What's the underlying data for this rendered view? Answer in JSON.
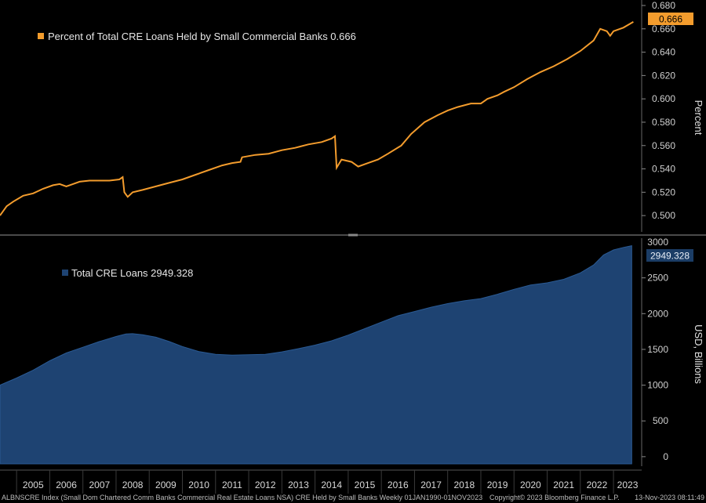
{
  "chart_data": [
    {
      "type": "line",
      "title": "Percent of Total CRE Loans Held by Small Commercial Banks 0.666",
      "legend": "Percent of Total CRE Loans Held by Small Commercial Banks",
      "last_value_label": "0.666",
      "ylabel": "Percent",
      "ylim": [
        0.486,
        0.68
      ],
      "yticks": [
        "0.500",
        "0.520",
        "0.540",
        "0.560",
        "0.580",
        "0.600",
        "0.620",
        "0.640",
        "0.660",
        "0.680"
      ],
      "color": "#f39c2d",
      "series": [
        {
          "name": "Percent of Total CRE Loans Held by Small Commercial Banks",
          "x": [
            2004.5,
            2004.7,
            2004.9,
            2005.2,
            2005.5,
            2005.8,
            2006.1,
            2006.3,
            2006.5,
            2006.7,
            2006.9,
            2007.2,
            2007.5,
            2007.8,
            2008.1,
            2008.2,
            2008.25,
            2008.35,
            2008.5,
            2008.8,
            2009.2,
            2009.6,
            2010.0,
            2010.4,
            2010.8,
            2011.2,
            2011.5,
            2011.75,
            2011.8,
            2012.2,
            2012.6,
            2013.0,
            2013.4,
            2013.8,
            2014.2,
            2014.5,
            2014.6,
            2014.65,
            2014.8,
            2015.1,
            2015.3,
            2015.6,
            2015.9,
            2016.2,
            2016.6,
            2016.9,
            2017.3,
            2017.7,
            2018.0,
            2018.3,
            2018.7,
            2019.0,
            2019.2,
            2019.5,
            2019.7,
            2020.0,
            2020.4,
            2020.8,
            2021.2,
            2021.6,
            2022.0,
            2022.4,
            2022.6,
            2022.8,
            2022.9,
            2023.0,
            2023.3,
            2023.6
          ],
          "values": [
            0.5,
            0.508,
            0.512,
            0.517,
            0.519,
            0.523,
            0.526,
            0.527,
            0.525,
            0.527,
            0.529,
            0.53,
            0.53,
            0.53,
            0.531,
            0.533,
            0.52,
            0.516,
            0.52,
            0.522,
            0.525,
            0.528,
            0.531,
            0.535,
            0.539,
            0.543,
            0.545,
            0.546,
            0.55,
            0.552,
            0.553,
            0.556,
            0.558,
            0.561,
            0.563,
            0.566,
            0.568,
            0.541,
            0.548,
            0.546,
            0.542,
            0.545,
            0.548,
            0.553,
            0.56,
            0.57,
            0.58,
            0.586,
            0.59,
            0.593,
            0.596,
            0.596,
            0.6,
            0.603,
            0.606,
            0.61,
            0.617,
            0.623,
            0.628,
            0.634,
            0.641,
            0.65,
            0.66,
            0.658,
            0.654,
            0.658,
            0.661,
            0.666
          ]
        }
      ]
    },
    {
      "type": "area",
      "title": "Total CRE Loans 2949.328",
      "legend": "Total CRE Loans",
      "last_value_label": "2949.328",
      "ylabel": "USD, Billions",
      "ylim": [
        -100,
        3000
      ],
      "yticks": [
        "0",
        "500",
        "1000",
        "1500",
        "2000",
        "2500"
      ],
      "top_partial_tick": "3000",
      "color": "#1e4372",
      "series": [
        {
          "name": "Total CRE Loans",
          "x": [
            2004.5,
            2005.0,
            2005.5,
            2006.0,
            2006.5,
            2007.0,
            2007.5,
            2008.0,
            2008.3,
            2008.5,
            2008.8,
            2009.2,
            2009.6,
            2010.0,
            2010.5,
            2011.0,
            2011.5,
            2012.0,
            2012.5,
            2013.0,
            2013.5,
            2014.0,
            2014.5,
            2015.0,
            2015.5,
            2016.0,
            2016.5,
            2017.0,
            2017.5,
            2018.0,
            2018.5,
            2019.0,
            2019.5,
            2020.0,
            2020.5,
            2021.0,
            2021.5,
            2022.0,
            2022.4,
            2022.7,
            2023.0,
            2023.3,
            2023.55
          ],
          "values": [
            1000,
            1100,
            1210,
            1340,
            1450,
            1530,
            1610,
            1680,
            1715,
            1720,
            1705,
            1670,
            1610,
            1540,
            1470,
            1430,
            1420,
            1425,
            1430,
            1465,
            1510,
            1560,
            1620,
            1700,
            1790,
            1880,
            1970,
            2030,
            2090,
            2140,
            2180,
            2210,
            2270,
            2340,
            2400,
            2430,
            2480,
            2570,
            2680,
            2820,
            2890,
            2925,
            2949.328
          ]
        }
      ]
    }
  ],
  "x_axis": {
    "years": [
      "2005",
      "2006",
      "2007",
      "2008",
      "2009",
      "2010",
      "2011",
      "2012",
      "2013",
      "2014",
      "2015",
      "2016",
      "2017",
      "2018",
      "2019",
      "2020",
      "2021",
      "2022",
      "2023"
    ]
  },
  "footer": {
    "left": "ALBNSCRE Index (Small Dom Chartered Comm Banks Commercial Real Estate Loans NSA) CRE Held by Small Banks  Weekly 01JAN1990-01NOV2023",
    "center": "Copyright© 2023 Bloomberg Finance L.P.",
    "right": "13-Nov-2023 08:11:49"
  },
  "colors": {
    "background": "#000000",
    "line": "#f39c2d",
    "area": "#1e4372",
    "badge_bottom": "#1b3d66"
  }
}
